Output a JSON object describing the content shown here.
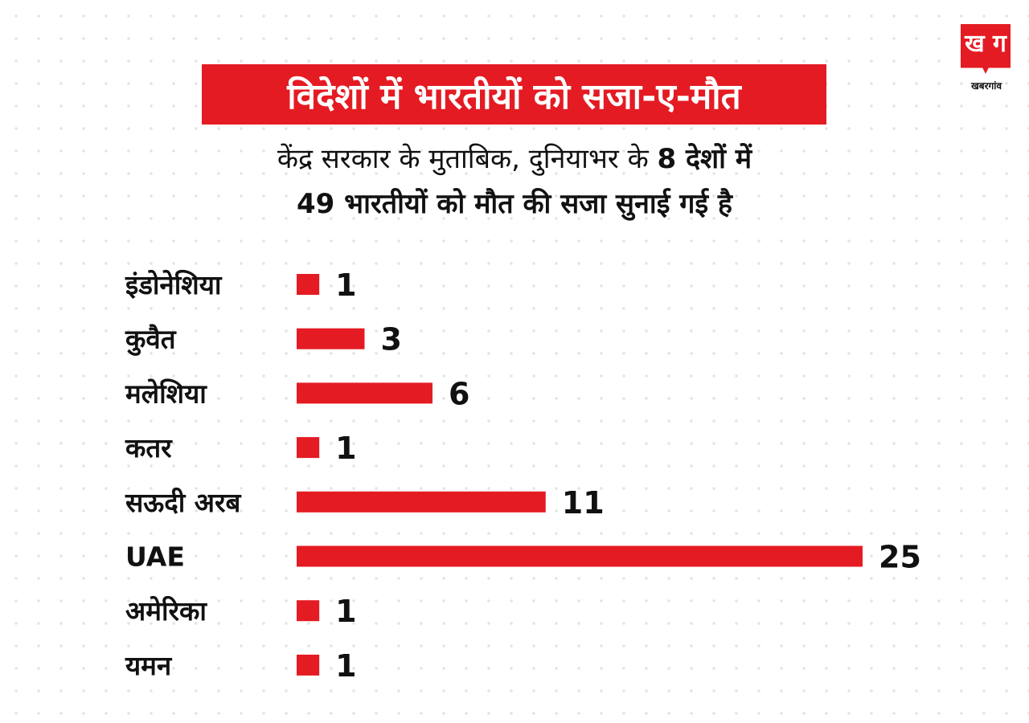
{
  "title": "विदेशों में भारतीयों को सजा-ए-मौत",
  "subtitle": {
    "line1_prefix": "केंद्र सरकार के मुताबिक, दुनियाभर के ",
    "line1_bold": "8 देशों में",
    "line2": "49 भारतीयों को मौत की सजा सुनाई गई है"
  },
  "logo": {
    "glyph": "ख ग",
    "text": "खबरगांव"
  },
  "colors": {
    "accent": "#e41b23",
    "text": "#111111",
    "background": "#ffffff"
  },
  "chart_data": {
    "type": "bar",
    "orientation": "horizontal",
    "categories": [
      "इंडोनेशिया",
      "कुवैत",
      "मलेशिया",
      "कतर",
      "सऊदी अरब",
      "UAE",
      "अमेरिका",
      "यमन"
    ],
    "values": [
      1,
      3,
      6,
      1,
      11,
      25,
      1,
      1
    ],
    "bar_color": "#e41b23",
    "data_labels": true,
    "grid": false,
    "legend": "none"
  }
}
